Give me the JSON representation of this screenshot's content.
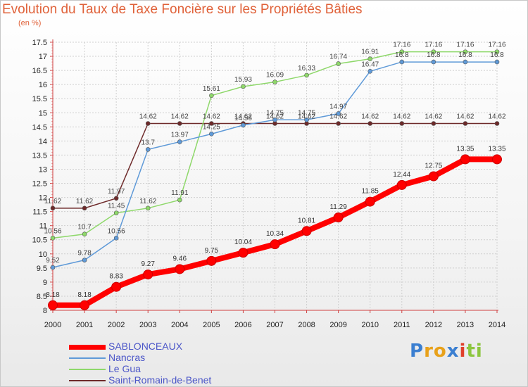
{
  "title": "Evolution du Taux de Taxe Foncière sur les Propriétés Bâties",
  "unit_label": "(en %)",
  "chart_data": {
    "type": "line",
    "title": "Evolution du Taux de Taxe Foncière sur les Propriétés Bâties",
    "ylabel": "(en %)",
    "xlabel": "",
    "ylim": [
      8,
      17.5
    ],
    "y_ticks": [
      8,
      8.5,
      9,
      9.5,
      10,
      10.5,
      11,
      11.5,
      12,
      12.5,
      13,
      13.5,
      14,
      14.5,
      15,
      15.5,
      16,
      16.5,
      17,
      17.5
    ],
    "y_tick_labels": [
      "8",
      "8.5",
      "9",
      "9.5",
      "10",
      "10.5",
      "11",
      "11.5",
      "12",
      "12.5",
      "13",
      "13.5",
      "14",
      "14.5",
      "15",
      "15.5",
      "16",
      "16.5",
      "17",
      "17.5"
    ],
    "categories": [
      "2000",
      "2001",
      "2002",
      "2003",
      "2004",
      "2005",
      "2006",
      "2007",
      "2008",
      "2009",
      "2010",
      "2011",
      "2012",
      "2013",
      "2014"
    ],
    "grid": true,
    "series": [
      {
        "name": "SABLONCEAUX",
        "color": "#ff0000",
        "values": [
          8.18,
          8.18,
          8.83,
          9.27,
          9.46,
          9.75,
          10.04,
          10.34,
          10.81,
          11.29,
          11.85,
          12.44,
          12.75,
          13.35,
          13.35
        ],
        "labels": [
          "8.18",
          "8.18",
          "8.83",
          "9.27",
          "9.46",
          "9.75",
          "10.04",
          "10.34",
          "10.81",
          "11.29",
          "11.85",
          "12.44",
          "12.75",
          "13.35",
          "13.35"
        ]
      },
      {
        "name": "Nancras",
        "color": "#5f9ad8",
        "values": [
          9.52,
          9.78,
          10.56,
          13.7,
          13.97,
          14.25,
          14.56,
          14.75,
          14.75,
          14.97,
          16.47,
          16.8,
          16.8,
          16.8,
          16.8
        ],
        "labels": [
          "9.52",
          "9.78",
          "10.56",
          "13.7",
          "13.97",
          "14.25",
          "14.56",
          "14.75",
          "14.75",
          "14.97",
          "16.47",
          "16.8",
          "16.8",
          "16.8",
          "16.8"
        ]
      },
      {
        "name": "Le Gua",
        "color": "#8ed86a",
        "values": [
          10.56,
          10.7,
          11.45,
          11.62,
          11.91,
          15.61,
          15.93,
          16.09,
          16.33,
          16.74,
          16.91,
          17.16,
          17.16,
          17.16,
          17.16
        ],
        "labels": [
          "10.56",
          "10.7",
          "11.45",
          "11.62",
          "11.91",
          "15.61",
          "15.93",
          "16.09",
          "16.33",
          "16.74",
          "16.91",
          "17.16",
          "17.16",
          "17.16",
          "17.16"
        ]
      },
      {
        "name": "Saint-Romain-de-Benet",
        "color": "#6e2a2a",
        "values": [
          11.62,
          11.62,
          11.97,
          14.62,
          14.62,
          14.62,
          14.62,
          14.62,
          14.62,
          14.62,
          14.62,
          14.62,
          14.62,
          14.62,
          14.62
        ],
        "labels": [
          "11.62",
          "11.62",
          "11.97",
          "14.62",
          "14.62",
          "14.62",
          "14.62",
          "14.62",
          "14.62",
          "14.62",
          "14.62",
          "14.62",
          "14.62",
          "14.62",
          "14.62"
        ]
      }
    ],
    "legend": "bottom-left"
  },
  "logo": {
    "letters": [
      "P",
      "r",
      "o",
      "x",
      "i",
      "t",
      "i"
    ],
    "colors": [
      "#3b7fd1",
      "#e8a11a",
      "#e8a11a",
      "#3b7fd1",
      "#e0402a",
      "#8dc63f",
      "#8dc63f"
    ]
  }
}
